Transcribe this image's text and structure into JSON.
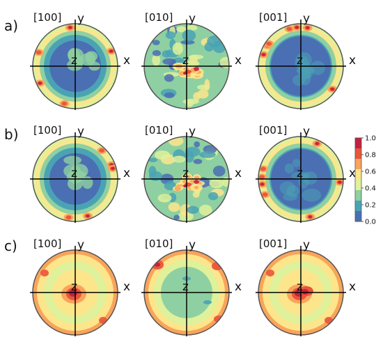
{
  "rows": [
    {
      "label": "a)",
      "cells": [
        {
          "direction": "[100]",
          "y": "y",
          "x": "x",
          "z": "z",
          "pattern": "ring"
        },
        {
          "direction": "[010]",
          "y": "y",
          "x": "x",
          "z": "z",
          "pattern": "speckle"
        },
        {
          "direction": "[001]",
          "y": "y",
          "x": "x",
          "z": "z",
          "pattern": "ring-strong"
        }
      ]
    },
    {
      "label": "b)",
      "cells": [
        {
          "direction": "[100]",
          "y": "y",
          "x": "x",
          "z": "z",
          "pattern": "ring"
        },
        {
          "direction": "[010]",
          "y": "y",
          "x": "x",
          "z": "z",
          "pattern": "speckle"
        },
        {
          "direction": "[001]",
          "y": "y",
          "x": "x",
          "z": "z",
          "pattern": "ring-strong"
        }
      ]
    },
    {
      "label": "c)",
      "cells": [
        {
          "direction": "[100]",
          "y": "y",
          "x": "x",
          "z": "z",
          "pattern": "center"
        },
        {
          "direction": "[010]",
          "y": "y",
          "x": "x",
          "z": "z",
          "pattern": "ring-soft"
        },
        {
          "direction": "[001]",
          "y": "y",
          "x": "x",
          "z": "z",
          "pattern": "center-strong"
        }
      ]
    }
  ],
  "colorbar": {
    "ticks": [
      "1.0",
      "0.8",
      "0.6",
      "0.4",
      "0.2",
      "0.0"
    ],
    "colors": [
      "#c2213f",
      "#e9543b",
      "#f9a45a",
      "#fde58c",
      "#dff19a",
      "#8ed0a1",
      "#4aa3b4",
      "#4b6fb3"
    ]
  }
}
